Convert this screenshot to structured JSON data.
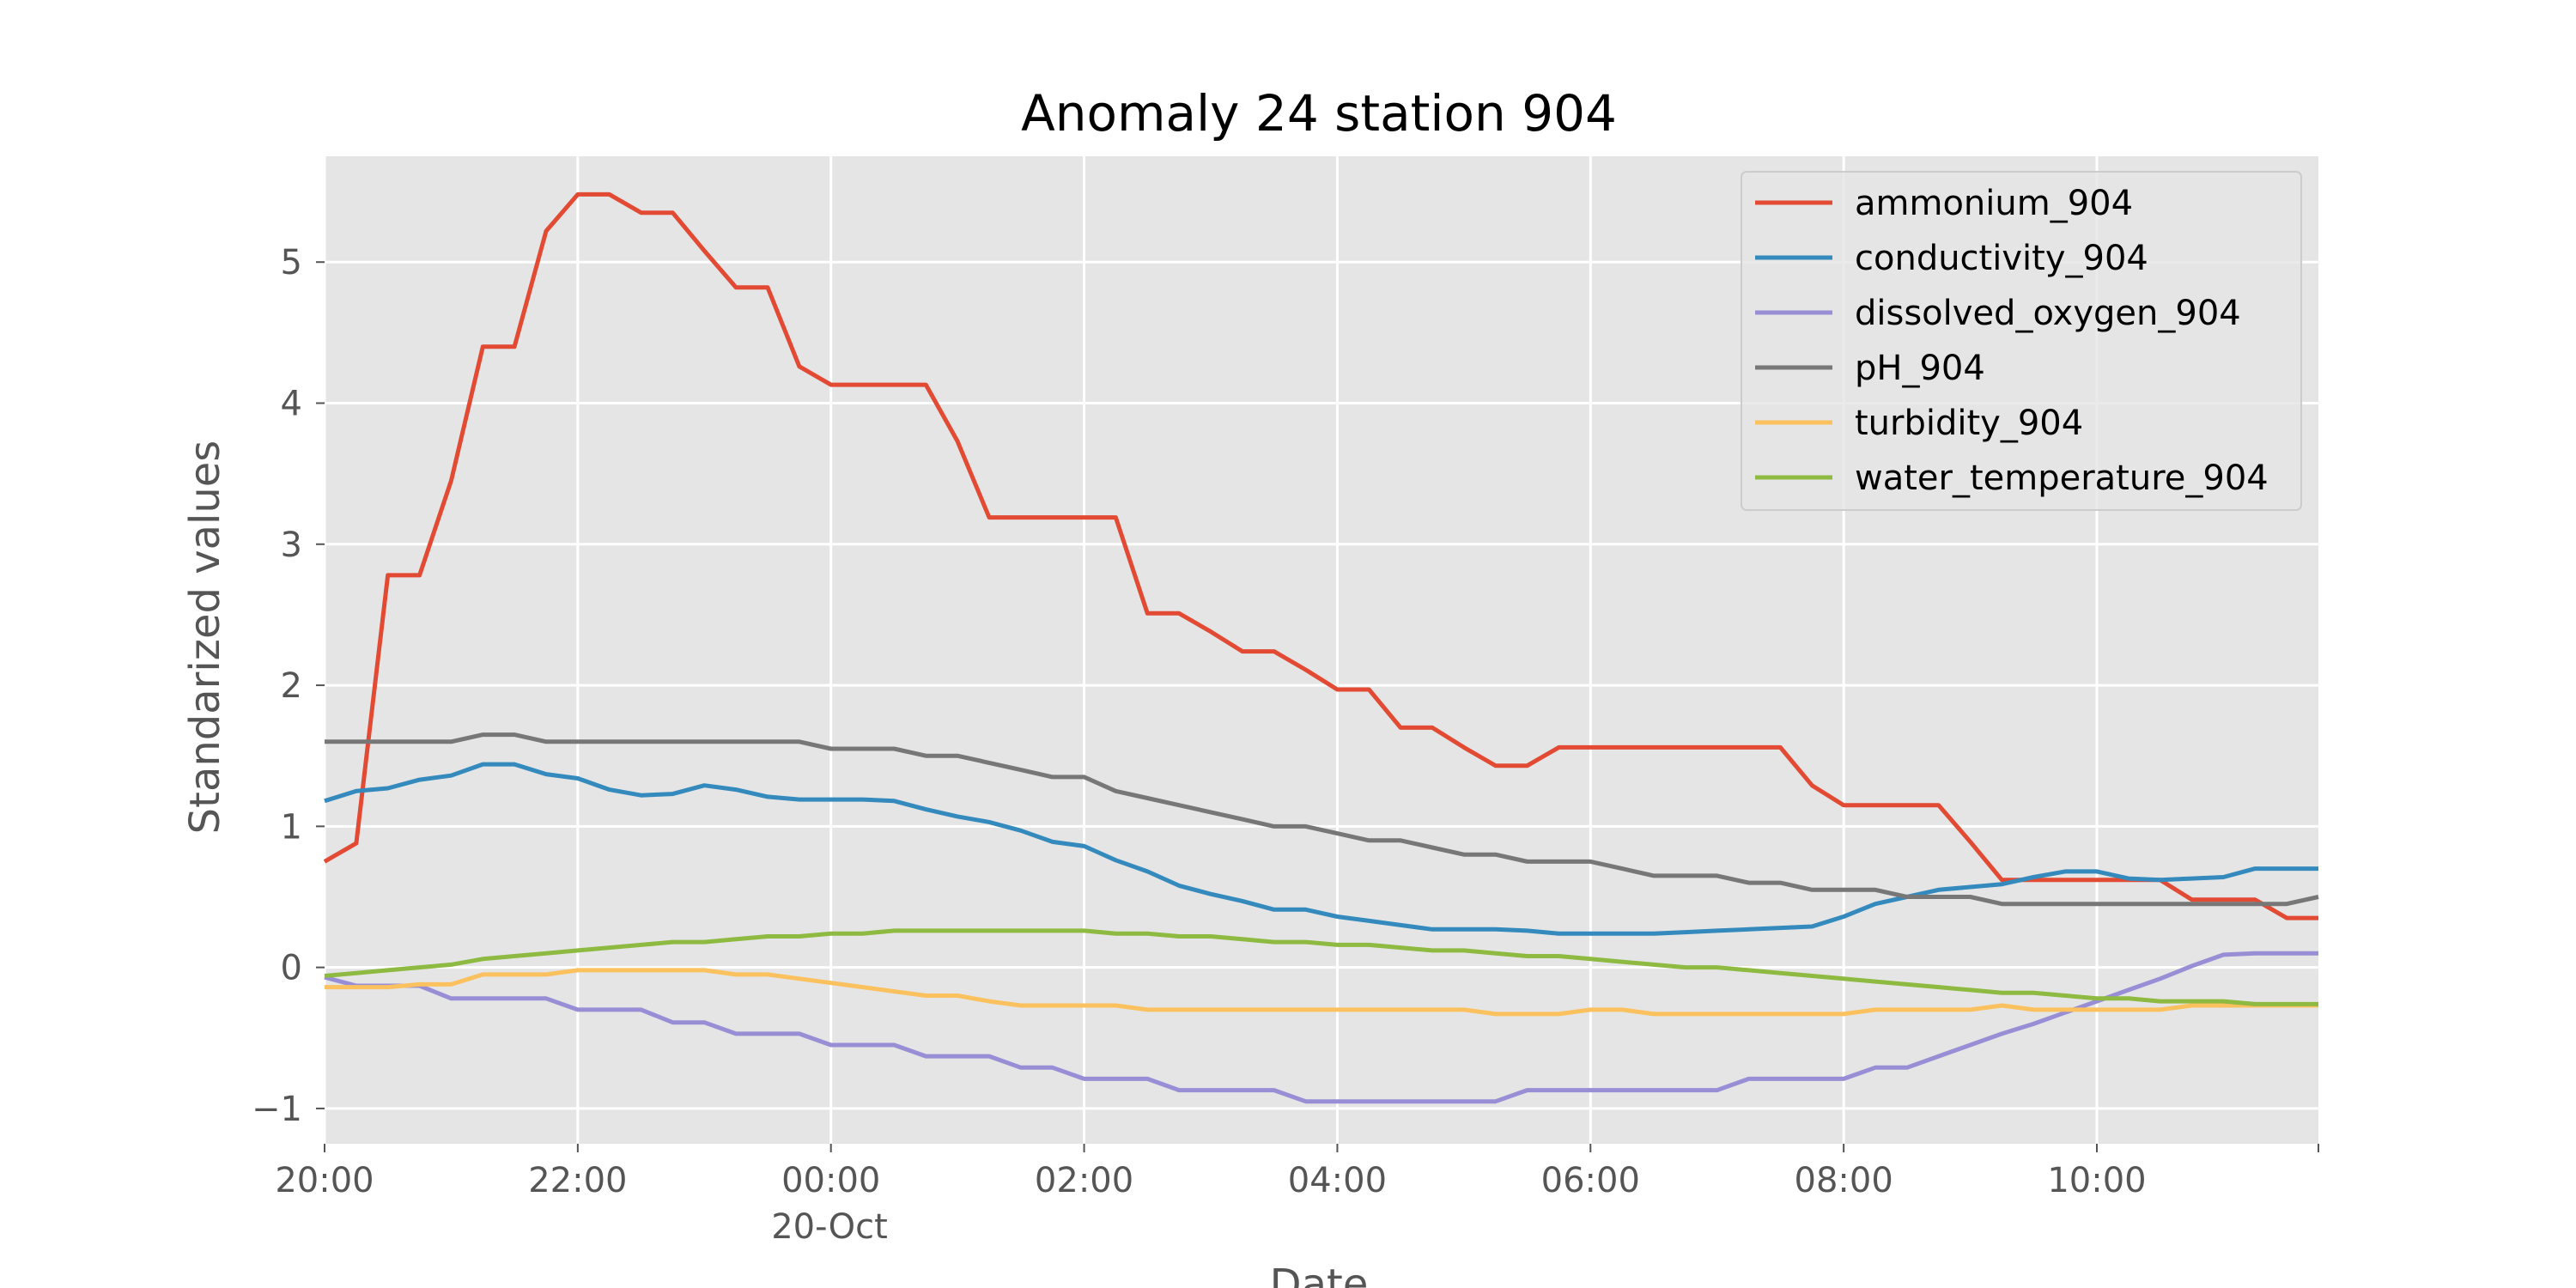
{
  "chart_data": {
    "type": "line",
    "title": "Anomaly 24 station 904",
    "xlabel": "Date",
    "ylabel": "Standarized values",
    "x_ticks": [
      "20:00",
      "22:00",
      "00:00",
      "02:00",
      "04:00",
      "06:00",
      "08:00",
      "10:00"
    ],
    "x_tick_hours": [
      0,
      2,
      4,
      6,
      8,
      10,
      12,
      14
    ],
    "x_date_label": "20-Oct",
    "x_date_label_hour": 4,
    "xlim_hours": [
      0,
      15.75
    ],
    "y_ticks": [
      "−1",
      "0",
      "1",
      "2",
      "3",
      "4",
      "5"
    ],
    "y_tick_values": [
      -1,
      0,
      1,
      2,
      3,
      4,
      5
    ],
    "ylim": [
      -1.25,
      5.75
    ],
    "grid": true,
    "legend_position": "top-right",
    "x_hours": [
      0,
      0.25,
      0.5,
      0.75,
      1,
      1.25,
      1.5,
      1.75,
      2,
      2.25,
      2.5,
      2.75,
      3,
      3.25,
      3.5,
      3.75,
      4,
      4.25,
      4.5,
      4.75,
      5,
      5.25,
      5.5,
      5.75,
      6,
      6.25,
      6.5,
      6.75,
      7,
      7.25,
      7.5,
      7.75,
      8,
      8.25,
      8.5,
      8.75,
      9,
      9.25,
      9.5,
      9.75,
      10,
      10.25,
      10.5,
      10.75,
      11,
      11.25,
      11.5,
      11.75,
      12,
      12.25,
      12.5,
      12.75,
      13,
      13.25,
      13.5,
      13.75,
      14,
      14.25,
      14.5,
      14.75,
      15,
      15.25,
      15.5,
      15.75
    ],
    "series": [
      {
        "name": "ammonium_904",
        "color": "#E24A33",
        "values": [
          0.75,
          0.88,
          2.78,
          2.78,
          3.45,
          4.4,
          4.4,
          5.22,
          5.48,
          5.48,
          5.35,
          5.35,
          5.08,
          4.82,
          4.82,
          4.26,
          4.13,
          4.13,
          4.13,
          4.13,
          3.73,
          3.19,
          3.19,
          3.19,
          3.19,
          3.19,
          2.51,
          2.51,
          2.38,
          2.24,
          2.24,
          2.11,
          1.97,
          1.97,
          1.7,
          1.7,
          1.56,
          1.43,
          1.43,
          1.56,
          1.56,
          1.56,
          1.56,
          1.56,
          1.56,
          1.56,
          1.56,
          1.29,
          1.15,
          1.15,
          1.15,
          1.15,
          0.89,
          0.62,
          0.62,
          0.62,
          0.62,
          0.62,
          0.62,
          0.48,
          0.48,
          0.48,
          0.35,
          0.35
        ]
      },
      {
        "name": "conductivity_904",
        "color": "#348ABD",
        "values": [
          1.18,
          1.25,
          1.27,
          1.33,
          1.36,
          1.44,
          1.44,
          1.37,
          1.34,
          1.26,
          1.22,
          1.23,
          1.29,
          1.26,
          1.21,
          1.19,
          1.19,
          1.19,
          1.18,
          1.12,
          1.07,
          1.03,
          0.97,
          0.89,
          0.86,
          0.76,
          0.68,
          0.58,
          0.52,
          0.47,
          0.41,
          0.41,
          0.36,
          0.33,
          0.3,
          0.27,
          0.27,
          0.27,
          0.26,
          0.24,
          0.24,
          0.24,
          0.24,
          0.25,
          0.26,
          0.27,
          0.28,
          0.29,
          0.36,
          0.45,
          0.5,
          0.55,
          0.57,
          0.59,
          0.64,
          0.68,
          0.68,
          0.63,
          0.62,
          0.63,
          0.64,
          0.7,
          0.7,
          0.7
        ]
      },
      {
        "name": "dissolved_oxygen_904",
        "color": "#988ED5",
        "values": [
          -0.07,
          -0.13,
          -0.13,
          -0.13,
          -0.22,
          -0.22,
          -0.22,
          -0.22,
          -0.3,
          -0.3,
          -0.3,
          -0.39,
          -0.39,
          -0.47,
          -0.47,
          -0.47,
          -0.55,
          -0.55,
          -0.55,
          -0.63,
          -0.63,
          -0.63,
          -0.71,
          -0.71,
          -0.79,
          -0.79,
          -0.79,
          -0.87,
          -0.87,
          -0.87,
          -0.87,
          -0.95,
          -0.95,
          -0.95,
          -0.95,
          -0.95,
          -0.95,
          -0.95,
          -0.87,
          -0.87,
          -0.87,
          -0.87,
          -0.87,
          -0.87,
          -0.87,
          -0.79,
          -0.79,
          -0.79,
          -0.79,
          -0.71,
          -0.71,
          -0.63,
          -0.55,
          -0.47,
          -0.4,
          -0.32,
          -0.24,
          -0.16,
          -0.08,
          0.01,
          0.09,
          0.1,
          0.1,
          0.1
        ]
      },
      {
        "name": "pH_904",
        "color": "#777777",
        "values": [
          1.6,
          1.6,
          1.6,
          1.6,
          1.6,
          1.65,
          1.65,
          1.6,
          1.6,
          1.6,
          1.6,
          1.6,
          1.6,
          1.6,
          1.6,
          1.6,
          1.55,
          1.55,
          1.55,
          1.5,
          1.5,
          1.45,
          1.4,
          1.35,
          1.35,
          1.25,
          1.2,
          1.15,
          1.1,
          1.05,
          1.0,
          1.0,
          0.95,
          0.9,
          0.9,
          0.85,
          0.8,
          0.8,
          0.75,
          0.75,
          0.75,
          0.7,
          0.65,
          0.65,
          0.65,
          0.6,
          0.6,
          0.55,
          0.55,
          0.55,
          0.5,
          0.5,
          0.5,
          0.45,
          0.45,
          0.45,
          0.45,
          0.45,
          0.45,
          0.45,
          0.45,
          0.45,
          0.45,
          0.5
        ]
      },
      {
        "name": "turbidity_904",
        "color": "#FBC15E",
        "values": [
          -0.14,
          -0.14,
          -0.14,
          -0.12,
          -0.12,
          -0.05,
          -0.05,
          -0.05,
          -0.02,
          -0.02,
          -0.02,
          -0.02,
          -0.02,
          -0.05,
          -0.05,
          -0.08,
          -0.11,
          -0.14,
          -0.17,
          -0.2,
          -0.2,
          -0.24,
          -0.27,
          -0.27,
          -0.27,
          -0.27,
          -0.3,
          -0.3,
          -0.3,
          -0.3,
          -0.3,
          -0.3,
          -0.3,
          -0.3,
          -0.3,
          -0.3,
          -0.3,
          -0.33,
          -0.33,
          -0.33,
          -0.3,
          -0.3,
          -0.33,
          -0.33,
          -0.33,
          -0.33,
          -0.33,
          -0.33,
          -0.33,
          -0.3,
          -0.3,
          -0.3,
          -0.3,
          -0.27,
          -0.3,
          -0.3,
          -0.3,
          -0.3,
          -0.3,
          -0.27,
          -0.27,
          -0.27,
          -0.27,
          -0.27
        ]
      },
      {
        "name": "water_temperature_904",
        "color": "#8EBA42",
        "values": [
          -0.06,
          -0.04,
          -0.02,
          0.0,
          0.02,
          0.06,
          0.08,
          0.1,
          0.12,
          0.14,
          0.16,
          0.18,
          0.18,
          0.2,
          0.22,
          0.22,
          0.24,
          0.24,
          0.26,
          0.26,
          0.26,
          0.26,
          0.26,
          0.26,
          0.26,
          0.24,
          0.24,
          0.22,
          0.22,
          0.2,
          0.18,
          0.18,
          0.16,
          0.16,
          0.14,
          0.12,
          0.12,
          0.1,
          0.08,
          0.08,
          0.06,
          0.04,
          0.02,
          0.0,
          0.0,
          -0.02,
          -0.04,
          -0.06,
          -0.08,
          -0.1,
          -0.12,
          -0.14,
          -0.16,
          -0.18,
          -0.18,
          -0.2,
          -0.22,
          -0.22,
          -0.24,
          -0.24,
          -0.24,
          -0.26,
          -0.26,
          -0.26
        ]
      }
    ]
  }
}
